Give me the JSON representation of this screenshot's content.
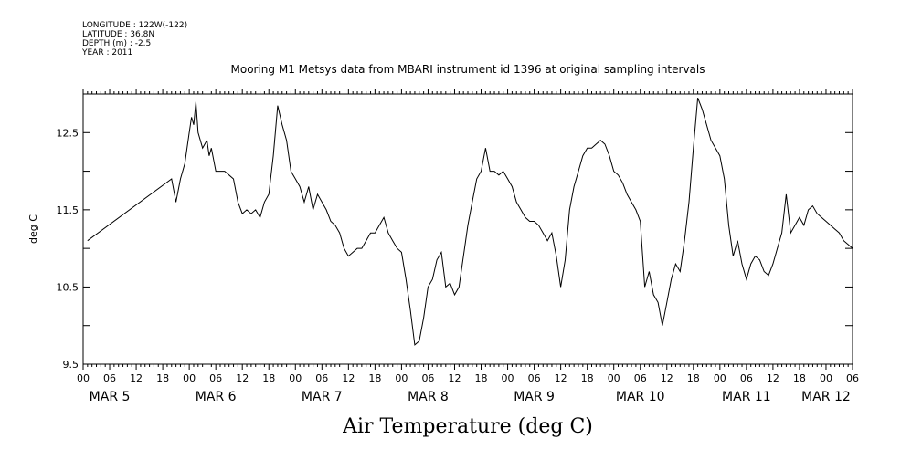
{
  "header": {
    "longitude": "LONGITUDE : 122W(-122)",
    "latitude": "LATITUDE : 36.8N",
    "depth": "DEPTH (m) : -2.5",
    "year": "YEAR : 2011"
  },
  "chart_data": {
    "type": "line",
    "title": "Mooring M1 Metsys data from MBARI instrument id 1396 at original sampling intervals",
    "ylabel": "deg C",
    "xlabel": "Air Temperature (deg C)",
    "ylim": [
      9.5,
      13.0
    ],
    "xlim_hours": [
      0,
      174
    ],
    "y_ticks": [
      9.5,
      10.5,
      11.5,
      12.5
    ],
    "y_tick_labels": [
      "9.5",
      "10.5",
      "11.5",
      "12.5"
    ],
    "x_hour_tick_labels": [
      "00",
      "06",
      "12",
      "18",
      "00",
      "06",
      "12",
      "18",
      "00",
      "06",
      "12",
      "18",
      "00",
      "06",
      "12",
      "18",
      "00",
      "06",
      "12",
      "18",
      "00",
      "06",
      "12",
      "18",
      "00",
      "06",
      "12",
      "18",
      "00",
      "06"
    ],
    "day_labels": [
      {
        "label": "MAR  5",
        "hour": 6
      },
      {
        "label": "MAR  6",
        "hour": 30
      },
      {
        "label": "MAR  7",
        "hour": 54
      },
      {
        "label": "MAR  8",
        "hour": 78
      },
      {
        "label": "MAR  9",
        "hour": 102
      },
      {
        "label": "MAR 10",
        "hour": 126
      },
      {
        "label": "MAR 11",
        "hour": 150
      },
      {
        "label": "MAR 12",
        "hour": 168
      }
    ],
    "grid": false,
    "series": [
      {
        "x_unit": "hours since 00 MAR 5 2011",
        "points": [
          [
            1,
            11.1
          ],
          [
            20,
            11.9
          ],
          [
            20.5,
            11.75
          ],
          [
            21,
            11.6
          ],
          [
            22,
            11.9
          ],
          [
            23,
            12.1
          ],
          [
            24,
            12.5
          ],
          [
            24.5,
            12.7
          ],
          [
            25,
            12.6
          ],
          [
            25.5,
            12.9
          ],
          [
            26,
            12.5
          ],
          [
            27,
            12.3
          ],
          [
            28,
            12.4
          ],
          [
            28.5,
            12.2
          ],
          [
            29,
            12.3
          ],
          [
            30,
            12.0
          ],
          [
            32,
            12.0
          ],
          [
            34,
            11.9
          ],
          [
            35,
            11.6
          ],
          [
            36,
            11.45
          ],
          [
            37,
            11.5
          ],
          [
            38,
            11.45
          ],
          [
            39,
            11.5
          ],
          [
            40,
            11.4
          ],
          [
            41,
            11.6
          ],
          [
            42,
            11.7
          ],
          [
            43,
            12.2
          ],
          [
            44,
            12.85
          ],
          [
            45,
            12.6
          ],
          [
            46,
            12.4
          ],
          [
            47,
            12.0
          ],
          [
            48,
            11.9
          ],
          [
            49,
            11.8
          ],
          [
            50,
            11.6
          ],
          [
            51,
            11.8
          ],
          [
            52,
            11.5
          ],
          [
            53,
            11.7
          ],
          [
            54,
            11.6
          ],
          [
            55,
            11.5
          ],
          [
            56,
            11.35
          ],
          [
            57,
            11.3
          ],
          [
            58,
            11.2
          ],
          [
            59,
            11.0
          ],
          [
            60,
            10.9
          ],
          [
            61,
            10.95
          ],
          [
            62,
            11.0
          ],
          [
            63,
            11.0
          ],
          [
            64,
            11.1
          ],
          [
            65,
            11.2
          ],
          [
            66,
            11.2
          ],
          [
            67,
            11.3
          ],
          [
            68,
            11.4
          ],
          [
            69,
            11.2
          ],
          [
            70,
            11.1
          ],
          [
            71,
            11.0
          ],
          [
            72,
            10.95
          ],
          [
            73,
            10.6
          ],
          [
            74,
            10.2
          ],
          [
            75,
            9.75
          ],
          [
            76,
            9.8
          ],
          [
            77,
            10.1
          ],
          [
            78,
            10.5
          ],
          [
            79,
            10.6
          ],
          [
            80,
            10.85
          ],
          [
            81,
            10.95
          ],
          [
            82,
            10.5
          ],
          [
            83,
            10.55
          ],
          [
            84,
            10.4
          ],
          [
            85,
            10.5
          ],
          [
            86,
            10.9
          ],
          [
            87,
            11.3
          ],
          [
            88,
            11.6
          ],
          [
            89,
            11.9
          ],
          [
            90,
            12.0
          ],
          [
            91,
            12.3
          ],
          [
            92,
            12.0
          ],
          [
            93,
            12.0
          ],
          [
            94,
            11.95
          ],
          [
            95,
            12.0
          ],
          [
            96,
            11.9
          ],
          [
            97,
            11.8
          ],
          [
            98,
            11.6
          ],
          [
            99,
            11.5
          ],
          [
            100,
            11.4
          ],
          [
            101,
            11.35
          ],
          [
            102,
            11.35
          ],
          [
            103,
            11.3
          ],
          [
            104,
            11.2
          ],
          [
            105,
            11.1
          ],
          [
            106,
            11.2
          ],
          [
            107,
            10.9
          ],
          [
            108,
            10.5
          ],
          [
            109,
            10.85
          ],
          [
            110,
            11.5
          ],
          [
            111,
            11.8
          ],
          [
            112,
            12.0
          ],
          [
            113,
            12.2
          ],
          [
            114,
            12.3
          ],
          [
            115,
            12.3
          ],
          [
            116,
            12.35
          ],
          [
            117,
            12.4
          ],
          [
            118,
            12.35
          ],
          [
            119,
            12.2
          ],
          [
            120,
            12.0
          ],
          [
            121,
            11.95
          ],
          [
            122,
            11.85
          ],
          [
            123,
            11.7
          ],
          [
            124,
            11.6
          ],
          [
            125,
            11.5
          ],
          [
            126,
            11.35
          ],
          [
            127,
            10.5
          ],
          [
            128,
            10.7
          ],
          [
            129,
            10.4
          ],
          [
            130,
            10.3
          ],
          [
            131,
            10.0
          ],
          [
            132,
            10.3
          ],
          [
            133,
            10.6
          ],
          [
            134,
            10.8
          ],
          [
            135,
            10.7
          ],
          [
            136,
            11.1
          ],
          [
            137,
            11.6
          ],
          [
            138,
            12.3
          ],
          [
            139,
            12.95
          ],
          [
            140,
            12.8
          ],
          [
            141,
            12.6
          ],
          [
            142,
            12.4
          ],
          [
            143,
            12.3
          ],
          [
            144,
            12.2
          ],
          [
            145,
            11.9
          ],
          [
            146,
            11.3
          ],
          [
            147,
            10.9
          ],
          [
            148,
            11.1
          ],
          [
            149,
            10.8
          ],
          [
            150,
            10.6
          ],
          [
            151,
            10.8
          ],
          [
            152,
            10.9
          ],
          [
            153,
            10.85
          ],
          [
            154,
            10.7
          ],
          [
            155,
            10.65
          ],
          [
            156,
            10.8
          ],
          [
            157,
            11.0
          ],
          [
            158,
            11.2
          ],
          [
            159,
            11.7
          ],
          [
            160,
            11.2
          ],
          [
            161,
            11.3
          ],
          [
            162,
            11.4
          ],
          [
            163,
            11.3
          ],
          [
            164,
            11.5
          ],
          [
            165,
            11.55
          ],
          [
            166,
            11.45
          ],
          [
            167,
            11.4
          ],
          [
            168,
            11.35
          ],
          [
            169,
            11.3
          ],
          [
            170,
            11.25
          ],
          [
            171,
            11.2
          ],
          [
            172,
            11.1
          ],
          [
            173,
            11.05
          ],
          [
            174,
            11.0
          ]
        ]
      }
    ]
  }
}
